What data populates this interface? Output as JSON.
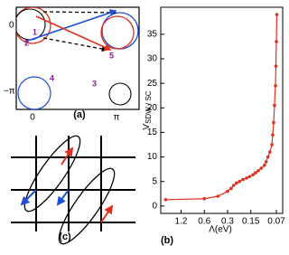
{
  "chart_data": {
    "type": "line",
    "panel_label": "(b)",
    "xlabel": "Λ(eV)",
    "ylabel": "V",
    "ylabel_sub": "SDW / SC",
    "x": [
      1.9,
      0.6,
      0.4,
      0.3,
      0.27,
      0.25,
      0.23,
      0.21,
      0.19,
      0.17,
      0.155,
      0.14,
      0.13,
      0.12,
      0.11,
      0.1,
      0.095,
      0.09,
      0.085,
      0.08,
      0.078,
      0.076,
      0.074,
      0.072,
      0.071,
      0.07,
      0.069
    ],
    "series": [
      {
        "color": "#e0301e",
        "values": [
          1.3,
          1.5,
          2.0,
          3.0,
          3.6,
          4.2,
          4.7,
          5.0,
          5.4,
          5.7,
          6.0,
          6.4,
          6.8,
          7.2,
          7.7,
          8.3,
          9.0,
          10.0,
          11.0,
          12.5,
          14.5,
          17.0,
          20.5,
          24.5,
          28.5,
          33.5,
          39.0
        ]
      }
    ],
    "log_x": true,
    "xlim": [
      2.2,
      0.058
    ],
    "xticks": [
      1.2,
      0.6,
      0.3,
      0.15,
      0.07
    ],
    "ylim": [
      -1.5,
      40.5
    ],
    "yticks": [
      0,
      5,
      10,
      15,
      20,
      25,
      30,
      35
    ]
  },
  "panel_a": {
    "label": "(a)",
    "axis_labels": [
      "0",
      "−π",
      "0",
      "π"
    ],
    "points": [
      "1",
      "2",
      "3",
      "4",
      "5"
    ]
  },
  "panel_c": {
    "label": "(c)"
  }
}
